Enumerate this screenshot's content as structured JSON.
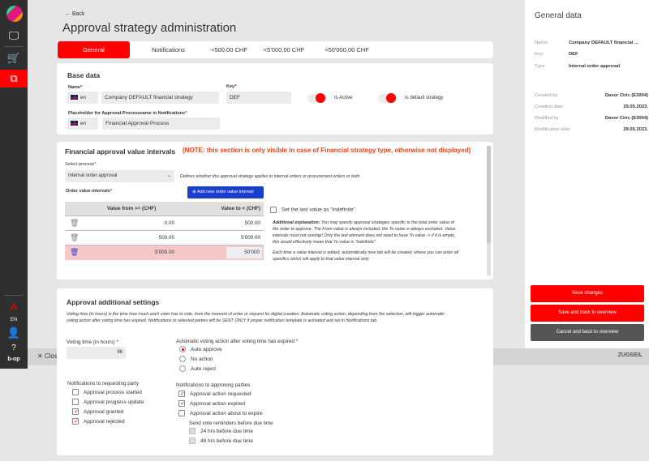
{
  "header": {
    "back": "Back",
    "title": "Approval strategy administration"
  },
  "sidebar": {
    "items": [
      "monitor-icon",
      "cart-icon",
      "approval-icon"
    ],
    "language": "EN",
    "brand": "b-op"
  },
  "tabs": [
    "General",
    "Notifications",
    "<500,00 CHF",
    "<5'000,00 CHF",
    "<50'000,00 CHF"
  ],
  "base": {
    "title": "Base data",
    "name_label": "Name",
    "lang": "en",
    "name_value": "Company DEFAULT financial strategy",
    "key_label": "Key",
    "key_value": "DEF",
    "is_active": "Is Active",
    "is_default": "Is default strategy",
    "placeholder_label": "Placeholder for Approval-Processname in Notifications",
    "placeholder_value": "Financial Approval Process",
    "active_on": true,
    "default_on": true
  },
  "financial": {
    "title": "Financial approval value intervals",
    "note": "(NOTE: this section is only visible in case of Financial strategy type, otherwise not displayed)",
    "select_label": "Select process",
    "select_value": "Internal order approval",
    "select_hint": "Defines whether this approval strategy applies to internal orders or procurement orders or both",
    "intervals_label": "Order value intervals",
    "add_button": "Add new order value interval",
    "col_from": "Value from >= (CHF)",
    "col_to": "Value to < (CHF)",
    "rows": [
      {
        "from": "0.00",
        "to": "500.00"
      },
      {
        "from": "500.00",
        "to": "5'000.00"
      },
      {
        "from": "5'000.00",
        "to": "50'000"
      }
    ],
    "indefinite": "Set the last value as \"indefinite\"",
    "explain_bold": "Additional explanation:",
    "explain": " You may specify approval strategies specific to the total order value of the order to approve. The From value is always included, the To value is always excluded. Value intervals must not overlap! Only the last element does not need to have To value -> if it is empty, this would effectively mean that To value is \"indefinite\".",
    "explain2": "Each time a value interval is added, automatically new tab will be created, where you can enter all specifics which will apply to that value interval only."
  },
  "settings": {
    "title": "Approval additional settings",
    "desc": "Voting time (in hours) is the time how much each voter has to vote, from the moment of order or request for digital creation. Automatic voting action, depending from the selection, will trigger automatic voting action after voting time has expired. Notifications to selected parties will be SENT ONLY if proper notification template is activated and set in Notifications tab.",
    "voting_label": "Voting time (in hours)",
    "voting_value": "96",
    "auto_label": "Automatic voting action after voting time has expired",
    "auto_options": [
      {
        "label": "Auto approve",
        "on": true
      },
      {
        "label": "No action",
        "on": false
      },
      {
        "label": "Auto reject",
        "on": false
      }
    ],
    "req_title": "Notifications to requesting party",
    "req_items": [
      {
        "label": "Approval process started",
        "on": false
      },
      {
        "label": "Approval progress update",
        "on": false
      },
      {
        "label": "Approval granted",
        "on": true
      },
      {
        "label": "Approval rejected",
        "on": true
      }
    ],
    "appr_title": "Notifications to approving parties",
    "appr_items": [
      {
        "label": "Approval action requested",
        "on": true
      },
      {
        "label": "Approval action expired",
        "on": true
      },
      {
        "label": "Approval action about to expire",
        "on": false
      }
    ],
    "reminder_title": "Send vote reminders before due time",
    "reminders": [
      {
        "label": "24 hrs before due time",
        "on": false
      },
      {
        "label": "48 hrs before due time",
        "on": false
      }
    ]
  },
  "general": {
    "title": "General data",
    "name_k": "Name:",
    "name_v": "Company DEFAULT financial ...",
    "key_k": "Key:",
    "key_v": "DEF",
    "type_k": "Type",
    "type_v": "Internal order approval",
    "created_by_k": "Created by",
    "created_by_v": "Davor Ciric (E3004)",
    "creation_k": "Creation date",
    "creation_v": "29.05.2023.",
    "modified_by_k": "Modified by",
    "modified_by_v": "Davor Ciric (E3004)",
    "modification_k": "Modification date",
    "modification_v": "29.05.2023."
  },
  "actions": {
    "save": "Save changes",
    "save_back": "Save and back to overview",
    "cancel": "Cancel and back to overview"
  },
  "bottombar": {
    "close": "Close",
    "logo": "ZUGSEIL"
  },
  "colors": {
    "accent": "#ff0000",
    "sidebar": "#2f2f2f",
    "button_blue": "#1a3fcf",
    "cancel": "#555555"
  }
}
